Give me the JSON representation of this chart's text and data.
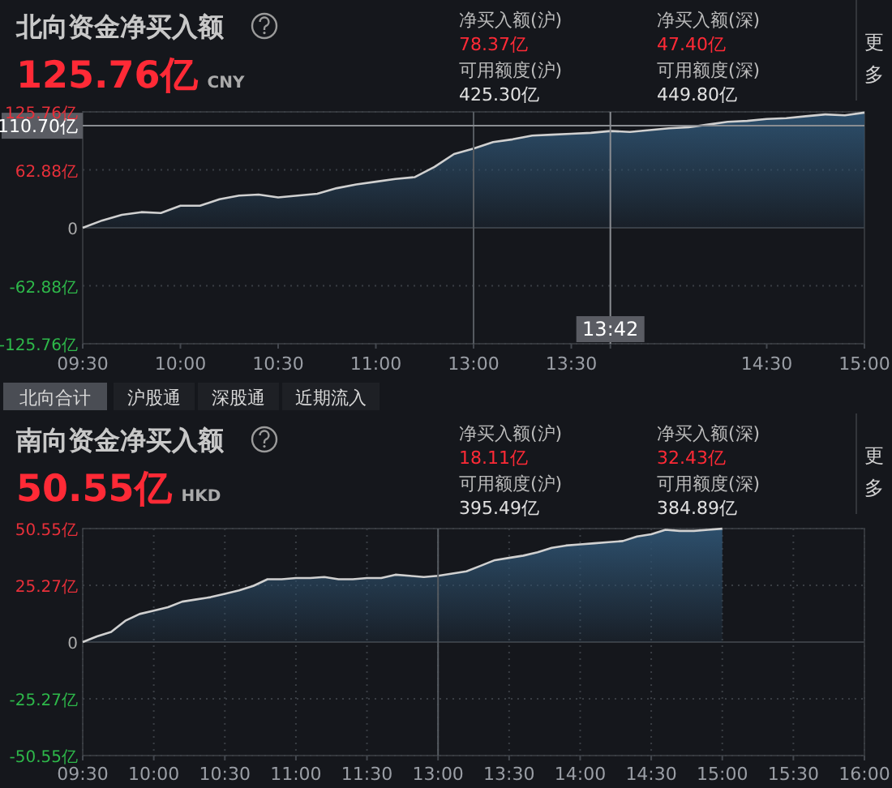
{
  "chart_data": [
    {
      "type": "area",
      "title": "北向资金净买入额",
      "subtitle": "125.76亿",
      "annotations": [
        "CNY",
        "净买入额(沪)",
        "78.37亿",
        "可用额度(沪)",
        "425.30亿",
        "净买入额(深)",
        "47.40亿",
        "可用额度(深)",
        "449.80亿",
        "更多",
        "北向合计",
        "沪股通",
        "深股通",
        "近期流入"
      ],
      "categories": [
        "09:30",
        null,
        null,
        null,
        null,
        "10:00",
        null,
        null,
        null,
        null,
        "10:30",
        null,
        null,
        null,
        null,
        "11:00",
        null,
        null,
        null,
        null,
        "13:00",
        null,
        null,
        null,
        null,
        "13:30",
        null,
        "13:42",
        null,
        null,
        null,
        null,
        null,
        null,
        null,
        "14:30",
        null,
        null,
        null,
        null,
        "15:00"
      ],
      "series": [
        {
          "color": "#2d4f6c",
          "values": [
            0,
            8,
            14,
            17,
            16,
            24,
            24,
            31,
            35,
            36,
            33,
            35,
            37,
            43,
            47,
            50,
            53,
            55,
            66,
            80,
            86,
            93,
            96,
            100,
            101,
            102,
            103,
            105,
            104,
            106,
            108,
            109,
            112,
            115,
            116,
            118,
            119,
            121,
            123,
            122,
            125
          ]
        }
      ],
      "ylim": [
        -125.76,
        125.76
      ],
      "yticks": [
        {
          "value": 125.76,
          "label": "125.76亿"
        },
        {
          "value": 62.88,
          "label": "62.88亿"
        },
        0,
        {
          "value": -62.88,
          "label": "-62.88亿"
        },
        {
          "value": -125.76,
          "label": "-125.76亿"
        }
      ],
      "grid": "y",
      "legend": false,
      "ref_lines": [
        {
          "axis": "x",
          "value": "13:00",
          "color": "#555a60"
        },
        {
          "axis": "x",
          "value": "13:42",
          "color": "#8a8d92"
        },
        {
          "axis": "y",
          "value": 110.7,
          "label": "110.70亿",
          "color": "#8a8d92"
        }
      ]
    },
    {
      "type": "area",
      "title": "南向资金净买入额",
      "subtitle": "50.55亿",
      "annotations": [
        "HKD",
        "净买入额(沪)",
        "18.11亿",
        "可用额度(沪)",
        "395.49亿",
        "净买入额(深)",
        "32.43亿",
        "可用额度(深)",
        "384.89亿",
        "更多"
      ],
      "categories": [
        "09:30",
        null,
        null,
        null,
        null,
        "10:00",
        null,
        null,
        null,
        null,
        "10:30",
        null,
        null,
        null,
        null,
        "11:00",
        null,
        null,
        null,
        null,
        "11:30",
        null,
        null,
        null,
        null,
        "13:00",
        null,
        null,
        null,
        null,
        "13:30",
        null,
        null,
        null,
        null,
        "14:00",
        null,
        null,
        null,
        null,
        "14:30",
        null,
        null,
        null,
        null,
        "15:00",
        null,
        null,
        null,
        null,
        "15:30",
        null,
        null,
        null,
        null,
        "16:00"
      ],
      "series": [
        {
          "color": "#2d4f6c",
          "values": [
            0,
            2.5,
            4.5,
            9.5,
            12.5,
            14,
            15.5,
            18,
            19,
            20,
            21.5,
            23,
            25,
            28,
            28,
            28.5,
            28.5,
            29,
            28,
            28,
            28.5,
            28.5,
            30,
            29.5,
            29,
            29.5,
            30.5,
            31.5,
            34,
            36.5,
            37.5,
            38.5,
            40,
            42,
            43,
            43.5,
            44,
            44.5,
            45,
            47,
            48,
            50,
            49.5,
            49.5,
            50,
            50.5,
            null,
            null,
            null,
            null,
            null,
            null,
            null,
            null,
            null,
            null
          ]
        }
      ],
      "ylim": [
        -50.55,
        50.55
      ],
      "yticks": [
        {
          "value": 50.55,
          "label": "50.55亿"
        },
        {
          "value": 25.27,
          "label": "25.27亿"
        },
        0,
        {
          "value": -25.27,
          "label": "-25.27亿"
        },
        {
          "value": -50.55,
          "label": "-50.55亿"
        }
      ],
      "grid": true,
      "legend": false,
      "ref_lines": [
        {
          "axis": "x",
          "value": "13:00",
          "color": "#555a60"
        }
      ]
    }
  ]
}
